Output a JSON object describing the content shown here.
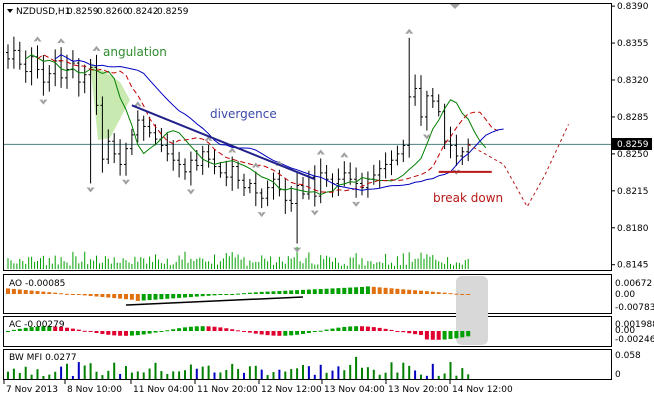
{
  "header": {
    "symbol": "NZDUSD,H1",
    "open": "0.8259",
    "high": "0.8260",
    "low": "0.8242",
    "close": "0.8259"
  },
  "colors": {
    "price_line": "#4b7f7f",
    "ma_fast": "#008000",
    "ma_mid": "#c00000",
    "ma_slow": "#0000c0",
    "annotation_green": "#2e8b2e",
    "annotation_blue": "#3a48a8",
    "annotation_red": "#b81818",
    "volume": "#00a000",
    "ao_up": "#00a000",
    "ao_down": "#e07010",
    "ac_up": "#00a000",
    "ac_down": "#e00030",
    "mfi": "#008000",
    "shade_green": "#c8eab0",
    "shade_gray": "#d8d8d8",
    "current_price_box": "#000000"
  },
  "chart_data": {
    "type": "candlestick",
    "price_axis": {
      "ticks": [
        "0.8390",
        "0.8355",
        "0.8320",
        "0.8285",
        "0.8250",
        "0.8215",
        "0.8180",
        "0.8145"
      ],
      "current": "0.8259",
      "range": [
        0.814,
        0.8392
      ]
    },
    "time_axis": [
      "7 Nov 2013",
      "8 Nov 10:00",
      "11 Nov 04:00",
      "11 Nov 20:00",
      "12 Nov 12:00",
      "13 Nov 04:00",
      "13 Nov 20:00",
      "14 Nov 12:00"
    ],
    "closes": [
      0.834,
      0.8348,
      0.8335,
      0.8328,
      0.8342,
      0.833,
      0.8318,
      0.8326,
      0.8338,
      0.8322,
      0.833,
      0.8336,
      0.8318,
      0.8325,
      0.8332,
      0.8296,
      0.8245,
      0.8262,
      0.825,
      0.824,
      0.8255,
      0.8268,
      0.8282,
      0.8276,
      0.827,
      0.8264,
      0.8258,
      0.825,
      0.8244,
      0.824,
      0.8233,
      0.8244,
      0.8239,
      0.8252,
      0.8245,
      0.8238,
      0.8232,
      0.8228,
      0.8238,
      0.8225,
      0.8218,
      0.8222,
      0.8213,
      0.8208,
      0.8218,
      0.8226,
      0.8216,
      0.8206,
      0.8203,
      0.822,
      0.8212,
      0.8228,
      0.821,
      0.8232,
      0.8226,
      0.8222,
      0.8226,
      0.8232,
      0.8226,
      0.8222,
      0.8218,
      0.8226,
      0.823,
      0.8236,
      0.824,
      0.8244,
      0.825,
      0.8258,
      0.8304,
      0.8312,
      0.8285,
      0.8305,
      0.83,
      0.829,
      0.8262,
      0.8258,
      0.8248,
      0.8252,
      0.8259
    ],
    "projection": [
      {
        "x_bar": 78,
        "price": 0.8259
      },
      {
        "x_bar": 84,
        "price": 0.824
      },
      {
        "x_bar": 88,
        "price": 0.82
      },
      {
        "x_bar": 91,
        "price": 0.823
      },
      {
        "x_bar": 95,
        "price": 0.8278
      }
    ],
    "volume_scale": "relative",
    "ao": {
      "label": "AO -0.00085",
      "ticks": [
        "0.00672",
        "0.00",
        "-0.00783"
      ]
    },
    "ac": {
      "label": "AC -0.00279",
      "ticks": [
        "0.001988",
        "0.00",
        "-0.00246"
      ]
    },
    "mfi": {
      "label": "BW MFI 0.0277",
      "ticks": [
        "0.058",
        "0"
      ]
    }
  },
  "annotations": {
    "angulation": "angulation",
    "divergence": "divergence",
    "break_down": "break down"
  }
}
